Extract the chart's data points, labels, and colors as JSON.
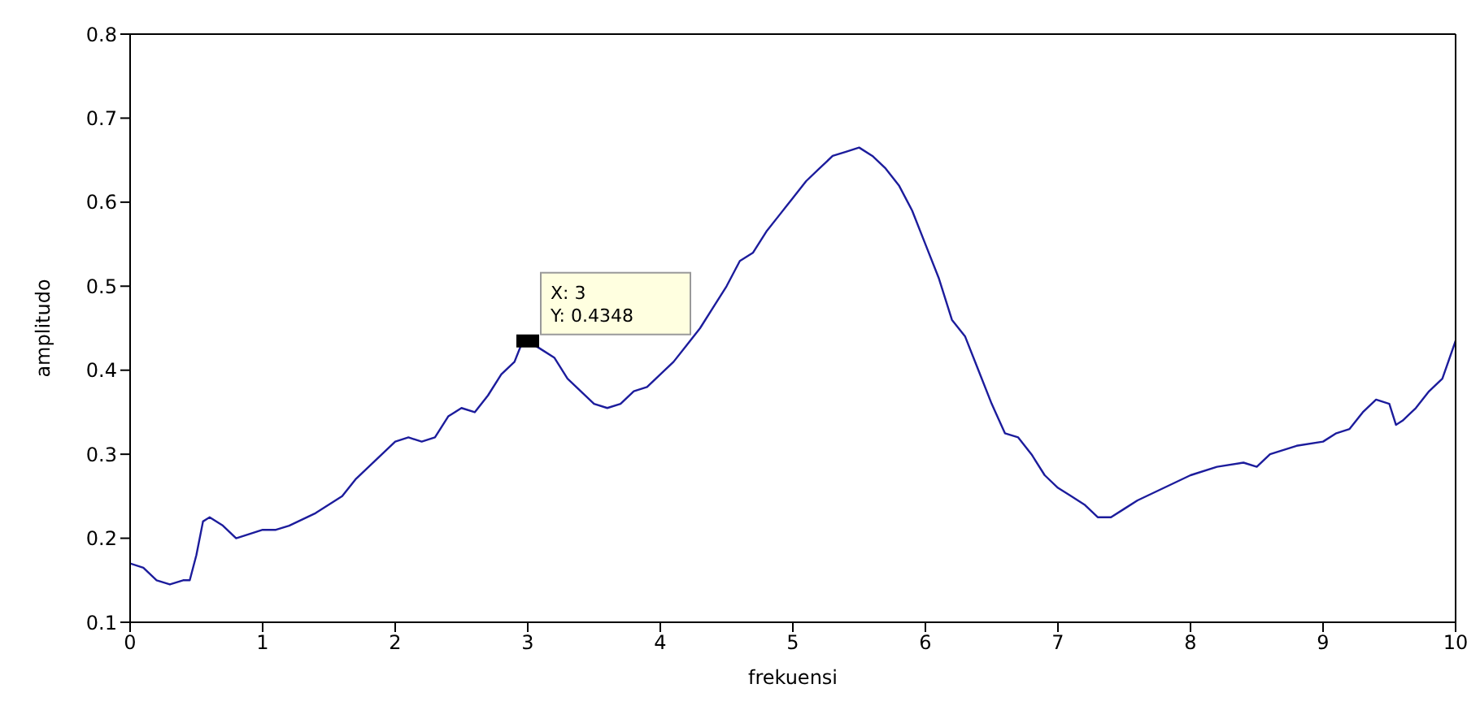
{
  "chart_data": {
    "type": "line",
    "xlabel": "frekuensi",
    "ylabel": "amplitudo",
    "x": [
      0,
      0.1,
      0.2,
      0.3,
      0.4,
      0.45,
      0.5,
      0.55,
      0.6,
      0.7,
      0.8,
      0.9,
      1.0,
      1.1,
      1.2,
      1.4,
      1.6,
      1.7,
      1.8,
      1.9,
      2.0,
      2.1,
      2.2,
      2.3,
      2.4,
      2.5,
      2.6,
      2.7,
      2.8,
      2.9,
      2.95,
      3.0,
      3.1,
      3.2,
      3.3,
      3.4,
      3.5,
      3.6,
      3.7,
      3.8,
      3.9,
      4.0,
      4.1,
      4.2,
      4.3,
      4.4,
      4.5,
      4.6,
      4.7,
      4.8,
      4.9,
      5.0,
      5.1,
      5.2,
      5.3,
      5.4,
      5.5,
      5.6,
      5.7,
      5.8,
      5.9,
      6.0,
      6.1,
      6.2,
      6.3,
      6.4,
      6.5,
      6.6,
      6.7,
      6.8,
      6.9,
      7.0,
      7.1,
      7.2,
      7.3,
      7.4,
      7.5,
      7.6,
      7.8,
      8.0,
      8.2,
      8.4,
      8.5,
      8.6,
      8.8,
      9.0,
      9.1,
      9.2,
      9.3,
      9.4,
      9.5,
      9.55,
      9.6,
      9.7,
      9.8,
      9.9,
      10
    ],
    "series": [
      {
        "color": "#1c1c9c",
        "values": [
          0.17,
          0.165,
          0.15,
          0.145,
          0.15,
          0.15,
          0.18,
          0.22,
          0.225,
          0.215,
          0.2,
          0.205,
          0.21,
          0.21,
          0.215,
          0.23,
          0.25,
          0.27,
          0.285,
          0.3,
          0.315,
          0.32,
          0.315,
          0.32,
          0.345,
          0.355,
          0.35,
          0.37,
          0.395,
          0.41,
          0.43,
          0.4348,
          0.425,
          0.415,
          0.39,
          0.375,
          0.36,
          0.355,
          0.36,
          0.375,
          0.38,
          0.395,
          0.41,
          0.43,
          0.45,
          0.475,
          0.5,
          0.53,
          0.54,
          0.565,
          0.585,
          0.605,
          0.625,
          0.64,
          0.655,
          0.66,
          0.665,
          0.655,
          0.64,
          0.62,
          0.59,
          0.55,
          0.51,
          0.46,
          0.44,
          0.4,
          0.36,
          0.325,
          0.32,
          0.3,
          0.275,
          0.26,
          0.25,
          0.24,
          0.225,
          0.225,
          0.235,
          0.245,
          0.26,
          0.275,
          0.285,
          0.29,
          0.285,
          0.3,
          0.31,
          0.315,
          0.325,
          0.33,
          0.35,
          0.365,
          0.36,
          0.335,
          0.34,
          0.355,
          0.375,
          0.39,
          0.435
        ]
      }
    ],
    "xlim": [
      0,
      10
    ],
    "xticks": [
      0,
      1,
      2,
      3,
      4,
      5,
      6,
      7,
      8,
      9,
      10
    ],
    "ylim": [
      0.1,
      0.8
    ],
    "yticks": [
      0.1,
      0.2,
      0.3,
      0.4,
      0.5,
      0.6,
      0.7,
      0.8
    ],
    "grid": false,
    "legend": false,
    "marker": "none",
    "line_style": "solid",
    "annotations": [
      {
        "text": "X: 3\nY: 0.4348",
        "x": 3,
        "y": 0.4348
      }
    ]
  }
}
